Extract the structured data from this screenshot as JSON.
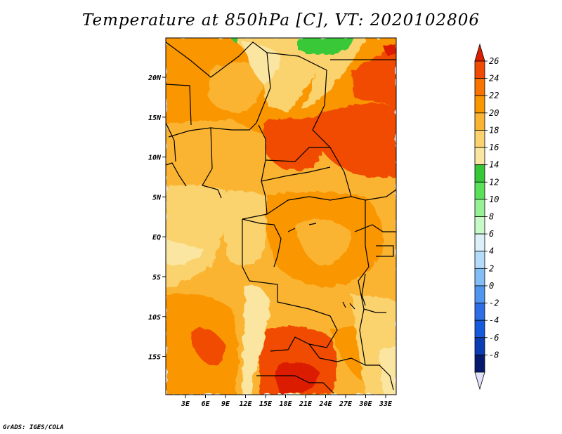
{
  "title": "Temperature at 850hPa [C], VT: 2020102806",
  "credit": "GrADS: IGES/COLA",
  "map": {
    "lon_ticks": [
      "3E",
      "6E",
      "9E",
      "12E",
      "15E",
      "18E",
      "21E",
      "24E",
      "27E",
      "30E",
      "33E"
    ],
    "lat_ticks": [
      "20N",
      "15N",
      "10N",
      "5N",
      "EQ",
      "5S",
      "10S",
      "15S"
    ]
  },
  "colorbar": {
    "labels": [
      "26",
      "24",
      "22",
      "20",
      "18",
      "16",
      "14",
      "12",
      "10",
      "8",
      "6",
      "4",
      "2",
      "0",
      "-2",
      "-4",
      "-6",
      "-8"
    ],
    "colors": [
      "#dc1e00",
      "#f04b00",
      "#fa7300",
      "#fa9600",
      "#fab432",
      "#fad26e",
      "#fae6a0",
      "#37c837",
      "#5ae15a",
      "#96f096",
      "#c8fac8",
      "#dcf0fa",
      "#b4dcfa",
      "#82bef5",
      "#5096f0",
      "#2d6ee6",
      "#145adc",
      "#0a3cb4",
      "#05196e",
      "#e1e1fa"
    ]
  }
}
